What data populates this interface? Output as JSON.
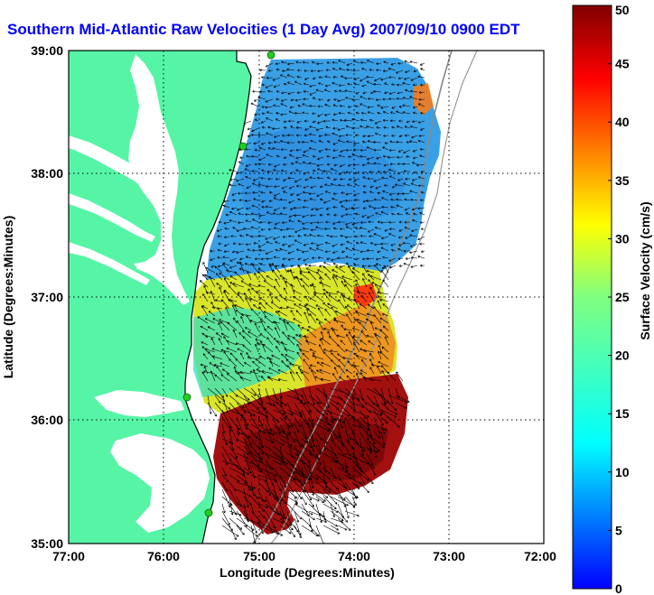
{
  "title": "Southern Mid-Atlantic Raw Velocities (1 Day Avg) 2007/09/10 0900 EDT",
  "xlabel": "Longitude (Degrees:Minutes)",
  "ylabel": "Latitude (Degrees:Minutes)",
  "x_ticks": [
    "77:00",
    "76:00",
    "75:00",
    "74:00",
    "73:00",
    "72:00"
  ],
  "y_ticks": [
    "39:00",
    "38:00",
    "37:00",
    "36:00",
    "35:00"
  ],
  "colorbar": {
    "label": "Surface Velocity (cm/s)",
    "min": 0,
    "max": 50,
    "ticks": [
      "0",
      "5",
      "10",
      "15",
      "20",
      "25",
      "30",
      "35",
      "40",
      "45",
      "50"
    ]
  },
  "colors": {
    "title": "#0000ff",
    "land": "#55f5a5",
    "water": "#ffffff",
    "grid": "#000000",
    "coastline": "#000000",
    "isobath": "#888888",
    "station": "#22cc22"
  },
  "grid": true
}
